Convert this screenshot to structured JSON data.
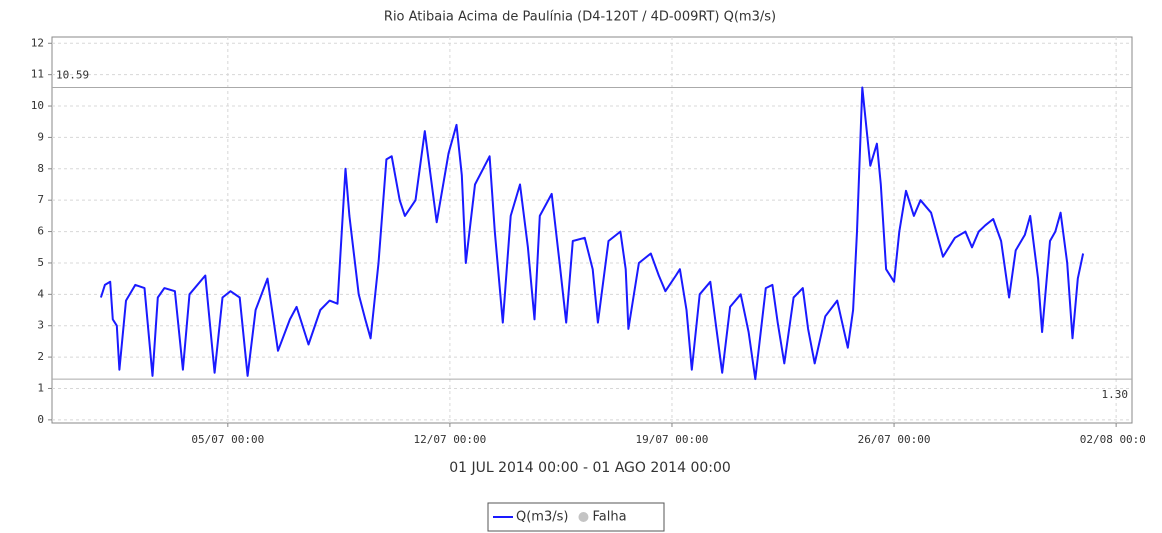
{
  "chart_data": {
    "type": "line",
    "title": "Rio Atibaia Acima de Paulínia (D4-120T / 4D-009RT) Q(m3/s)",
    "x_label": "01 JUL 2014 00:00 - 01 AGO 2014 00:00",
    "x": [
      "2014-07-01 00:00",
      "2014-07-01 03:00",
      "2014-07-01 07:00",
      "2014-07-01 09:00",
      "2014-07-01 12:00",
      "2014-07-01 14:00",
      "2014-07-01 19:00",
      "2014-07-02 02:00",
      "2014-07-02 09:00",
      "2014-07-02 15:00",
      "2014-07-02 19:00",
      "2014-07-03 00:00",
      "2014-07-03 08:00",
      "2014-07-03 14:00",
      "2014-07-03 19:00",
      "2014-07-04 07:00",
      "2014-07-04 14:00",
      "2014-07-04 20:00",
      "2014-07-05 02:00",
      "2014-07-05 09:00",
      "2014-07-05 15:00",
      "2014-07-05 21:00",
      "2014-07-06 06:00",
      "2014-07-06 14:00",
      "2014-07-06 23:00",
      "2014-07-07 04:00",
      "2014-07-07 13:00",
      "2014-07-07 22:00",
      "2014-07-08 05:00",
      "2014-07-08 11:00",
      "2014-07-08 17:00",
      "2014-07-08 20:00",
      "2014-07-09 03:00",
      "2014-07-09 08:00",
      "2014-07-09 12:00",
      "2014-07-09 18:00",
      "2014-07-10 00:00",
      "2014-07-10 04:00",
      "2014-07-10 10:00",
      "2014-07-10 14:00",
      "2014-07-10 22:00",
      "2014-07-11 05:00",
      "2014-07-11 14:00",
      "2014-07-11 23:00",
      "2014-07-12 05:00",
      "2014-07-12 09:00",
      "2014-07-12 12:00",
      "2014-07-12 19:00",
      "2014-07-13 06:00",
      "2014-07-13 10:00",
      "2014-07-13 16:00",
      "2014-07-13 22:00",
      "2014-07-14 05:00",
      "2014-07-14 11:00",
      "2014-07-14 16:00",
      "2014-07-14 20:00",
      "2014-07-15 05:00",
      "2014-07-15 11:00",
      "2014-07-15 16:00",
      "2014-07-15 21:00",
      "2014-07-16 06:00",
      "2014-07-16 12:00",
      "2014-07-16 16:00",
      "2014-07-17 00:00",
      "2014-07-17 09:00",
      "2014-07-17 13:00",
      "2014-07-17 15:00",
      "2014-07-17 23:00",
      "2014-07-18 08:00",
      "2014-07-18 14:00",
      "2014-07-18 19:00",
      "2014-07-19 03:00",
      "2014-07-19 06:00",
      "2014-07-19 11:00",
      "2014-07-19 15:00",
      "2014-07-19 21:00",
      "2014-07-20 05:00",
      "2014-07-20 09:00",
      "2014-07-20 14:00",
      "2014-07-20 20:00",
      "2014-07-21 04:00",
      "2014-07-21 10:00",
      "2014-07-21 15:00",
      "2014-07-21 23:00",
      "2014-07-22 04:00",
      "2014-07-22 08:00",
      "2014-07-22 13:00",
      "2014-07-22 20:00",
      "2014-07-23 03:00",
      "2014-07-23 07:00",
      "2014-07-23 12:00",
      "2014-07-23 20:00",
      "2014-07-24 05:00",
      "2014-07-24 13:00",
      "2014-07-24 17:00",
      "2014-07-24 20:00",
      "2014-07-25 00:00",
      "2014-07-25 06:00",
      "2014-07-25 11:00",
      "2014-07-25 14:00",
      "2014-07-25 18:00",
      "2014-07-26 00:00",
      "2014-07-26 04:00",
      "2014-07-26 09:00",
      "2014-07-26 15:00",
      "2014-07-26 20:00",
      "2014-07-27 04:00",
      "2014-07-27 13:00",
      "2014-07-27 22:00",
      "2014-07-28 06:00",
      "2014-07-28 11:00",
      "2014-07-28 16:00",
      "2014-07-28 21:00",
      "2014-07-29 03:00",
      "2014-07-29 09:00",
      "2014-07-29 15:00",
      "2014-07-29 20:00",
      "2014-07-30 03:00",
      "2014-07-30 07:00",
      "2014-07-30 13:00",
      "2014-07-30 16:00",
      "2014-07-30 22:00",
      "2014-07-31 02:00",
      "2014-07-31 06:00",
      "2014-07-31 11:00",
      "2014-07-31 15:00",
      "2014-07-31 19:00",
      "2014-07-31 23:00"
    ],
    "series": [
      {
        "name": "Q(m3/s)",
        "color": "#1a1aff",
        "values": [
          3.9,
          4.3,
          4.4,
          3.2,
          3.0,
          1.6,
          3.8,
          4.3,
          4.2,
          1.4,
          3.9,
          4.2,
          4.1,
          1.6,
          4.0,
          4.6,
          1.5,
          3.9,
          4.1,
          3.9,
          1.4,
          3.5,
          4.5,
          2.2,
          3.2,
          3.6,
          2.4,
          3.5,
          3.8,
          3.7,
          8.0,
          6.5,
          4.0,
          3.2,
          2.6,
          5.0,
          8.3,
          8.4,
          7.0,
          6.5,
          7.0,
          9.2,
          6.3,
          8.5,
          9.4,
          7.8,
          5.0,
          7.5,
          8.4,
          6.0,
          3.1,
          6.5,
          7.5,
          5.5,
          3.2,
          6.5,
          7.2,
          5.0,
          3.1,
          5.7,
          5.8,
          4.8,
          3.1,
          5.7,
          6.0,
          4.8,
          2.9,
          5.0,
          5.3,
          4.6,
          4.1,
          4.6,
          4.8,
          3.5,
          1.6,
          4.0,
          4.4,
          3.1,
          1.5,
          3.6,
          4.0,
          2.8,
          1.3,
          4.2,
          4.3,
          3.1,
          1.8,
          3.9,
          4.2,
          2.9,
          1.8,
          3.3,
          3.8,
          2.3,
          3.5,
          6.0,
          10.59,
          8.1,
          8.8,
          7.5,
          4.8,
          4.4,
          6.0,
          7.3,
          6.5,
          7.0,
          6.6,
          5.2,
          5.8,
          6.0,
          5.5,
          6.0,
          6.2,
          6.4,
          5.7,
          3.9,
          5.4,
          5.9,
          6.5,
          4.5,
          2.8,
          5.7,
          6.0,
          6.6,
          5.0,
          2.6,
          4.5,
          5.3
        ]
      }
    ],
    "legend_extra": [
      {
        "name": "Falha",
        "color": "#c4c4c4"
      }
    ],
    "markers": [
      {
        "value": 10.59,
        "label": "10.59"
      },
      {
        "value": 1.3,
        "label": "1.30"
      }
    ],
    "xlim": [
      "2014-06-29 11:00",
      "2014-08-02 12:00"
    ],
    "xticks": [
      {
        "value": "2014-07-05 00:00",
        "label": "05/07 00:00"
      },
      {
        "value": "2014-07-12 00:00",
        "label": "12/07 00:00"
      },
      {
        "value": "2014-07-19 00:00",
        "label": "19/07 00:00"
      },
      {
        "value": "2014-07-26 00:00",
        "label": "26/07 00:00"
      },
      {
        "value": "2014-08-02 00:00",
        "label": "02/08 00:00"
      }
    ],
    "ylim": [
      -0.1,
      12.2
    ],
    "yticks": [
      0,
      1,
      2,
      3,
      4,
      5,
      6,
      7,
      8,
      9,
      10,
      11,
      12
    ],
    "grid": true
  }
}
